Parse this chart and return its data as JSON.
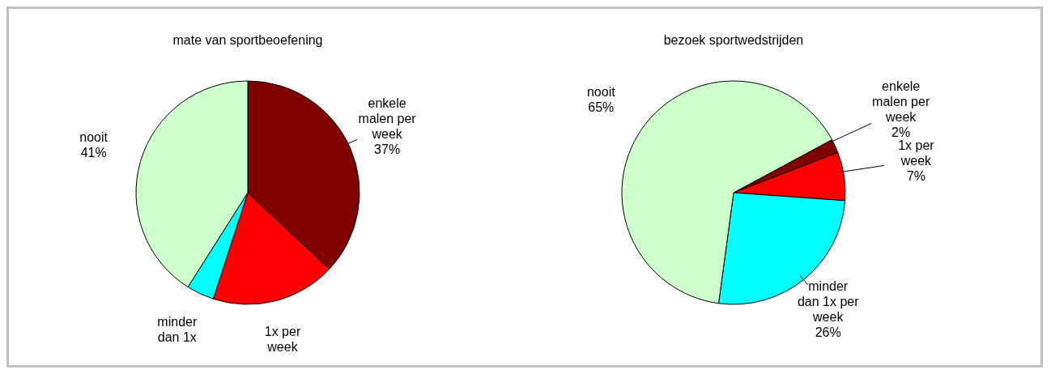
{
  "chart_data": [
    {
      "type": "pie",
      "title": "mate van sportbeoefening",
      "categories": [
        "enkele malen per week",
        "1x per week",
        "minder dan 1x",
        "nooit"
      ],
      "values": [
        37,
        18,
        4,
        41
      ],
      "colors": [
        "#800000",
        "#ff0000",
        "#00ffff",
        "#ccffcc"
      ],
      "value_labels": [
        "37%",
        null,
        null,
        "41%"
      ]
    },
    {
      "type": "pie",
      "title": "bezoek sportwedstrijden",
      "categories": [
        "enkele malen per week",
        "1x per week",
        "minder dan 1x per week",
        "nooit"
      ],
      "values": [
        2,
        7,
        26,
        65
      ],
      "colors": [
        "#800000",
        "#ff0000",
        "#00ffff",
        "#ccffcc"
      ],
      "value_labels": [
        "2%",
        "7%",
        "26%",
        "65%"
      ]
    }
  ]
}
